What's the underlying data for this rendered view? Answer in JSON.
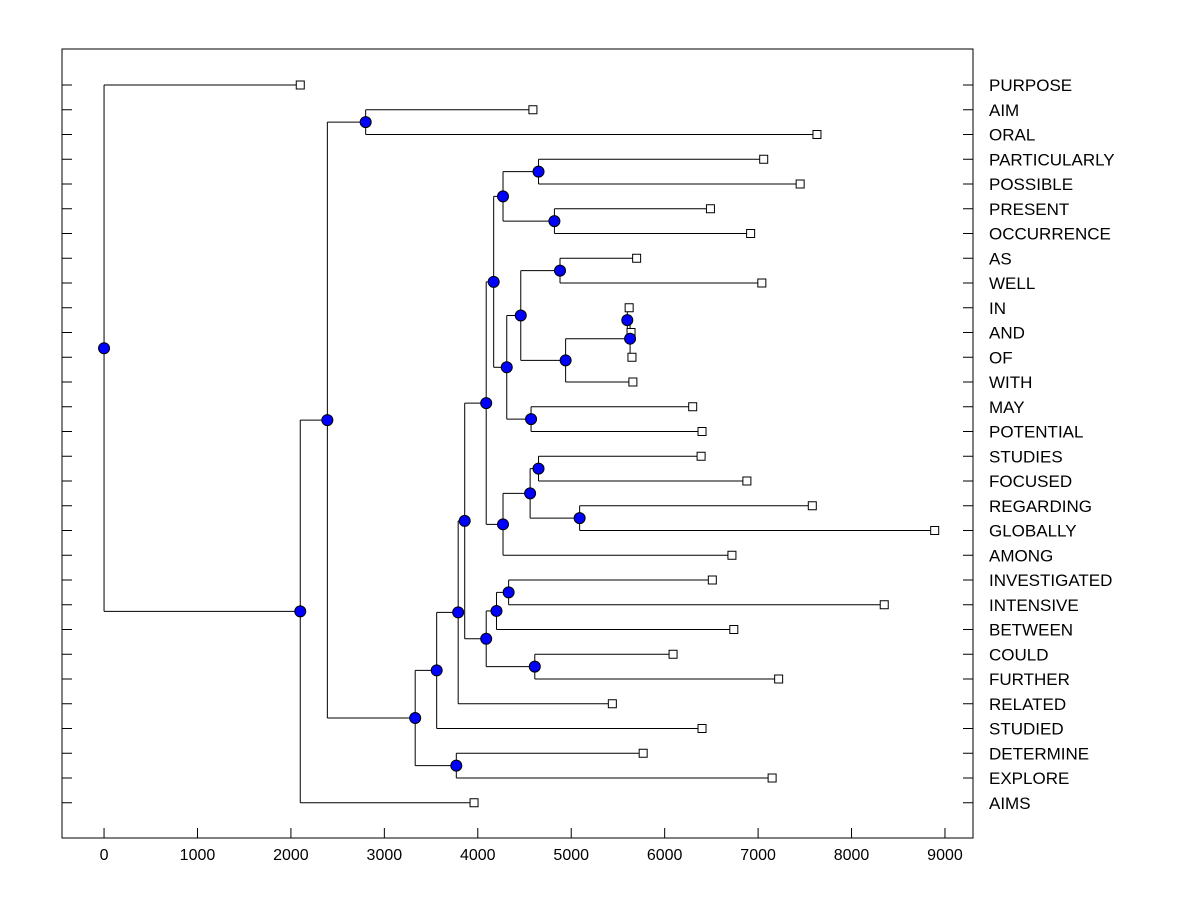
{
  "chart_data": {
    "type": "dendrogram",
    "title": "",
    "xlabel": "",
    "ylabel": "",
    "orientation": "horizontal",
    "xlim": [
      -450,
      9300
    ],
    "xticks": [
      0,
      1000,
      2000,
      3000,
      4000,
      5000,
      6000,
      7000,
      8000,
      9000
    ],
    "grid": false,
    "colors": {
      "node": "#0000ff",
      "line": "#000000",
      "leaf_fill": "#ffffff"
    },
    "leaves": [
      {
        "label": "PURPOSE",
        "x": 2100
      },
      {
        "label": "AIM",
        "x": 4590
      },
      {
        "label": "ORAL",
        "x": 7630
      },
      {
        "label": "PARTICULARLY",
        "x": 7060
      },
      {
        "label": "POSSIBLE",
        "x": 7450
      },
      {
        "label": "PRESENT",
        "x": 6490
      },
      {
        "label": "OCCURRENCE",
        "x": 6920
      },
      {
        "label": "AS",
        "x": 5700
      },
      {
        "label": "WELL",
        "x": 7040
      },
      {
        "label": "IN",
        "x": 5620
      },
      {
        "label": "AND",
        "x": 5640
      },
      {
        "label": "OF",
        "x": 5650
      },
      {
        "label": "WITH",
        "x": 5660
      },
      {
        "label": "MAY",
        "x": 6300
      },
      {
        "label": "POTENTIAL",
        "x": 6400
      },
      {
        "label": "STUDIES",
        "x": 6390
      },
      {
        "label": "FOCUSED",
        "x": 6880
      },
      {
        "label": "REGARDING",
        "x": 7580
      },
      {
        "label": "GLOBALLY",
        "x": 8890
      },
      {
        "label": "AMONG",
        "x": 6720
      },
      {
        "label": "INVESTIGATED",
        "x": 6510
      },
      {
        "label": "INTENSIVE",
        "x": 8350
      },
      {
        "label": "BETWEEN",
        "x": 6740
      },
      {
        "label": "COULD",
        "x": 6090
      },
      {
        "label": "FURTHER",
        "x": 7220
      },
      {
        "label": "RELATED",
        "x": 5440
      },
      {
        "label": "STUDIED",
        "x": 6400
      },
      {
        "label": "DETERMINE",
        "x": 5770
      },
      {
        "label": "EXPLORE",
        "x": 7150
      },
      {
        "label": "AIMS",
        "x": 3960
      }
    ],
    "merges": [
      {
        "id": "n1",
        "x": 5600,
        "children": [
          "L9",
          "L10"
        ]
      },
      {
        "id": "n2",
        "x": 5630,
        "children": [
          "n1",
          "L11"
        ]
      },
      {
        "id": "n3",
        "x": 4940,
        "children": [
          "n2",
          "L12"
        ]
      },
      {
        "id": "n4",
        "x": 4880,
        "children": [
          "L7",
          "L8"
        ]
      },
      {
        "id": "n5",
        "x": 4460,
        "children": [
          "n4",
          "n3"
        ]
      },
      {
        "id": "n6",
        "x": 4570,
        "children": [
          "L13",
          "L14"
        ]
      },
      {
        "id": "n7",
        "x": 4310,
        "children": [
          "n5",
          "n6"
        ]
      },
      {
        "id": "n8",
        "x": 4650,
        "children": [
          "L3",
          "L4"
        ]
      },
      {
        "id": "n9",
        "x": 4820,
        "children": [
          "L5",
          "L6"
        ]
      },
      {
        "id": "n10",
        "x": 4270,
        "children": [
          "n8",
          "n9"
        ]
      },
      {
        "id": "n11",
        "x": 4170,
        "children": [
          "n10",
          "n7"
        ]
      },
      {
        "id": "n12",
        "x": 4650,
        "children": [
          "L15",
          "L16"
        ]
      },
      {
        "id": "n13",
        "x": 5090,
        "children": [
          "L17",
          "L18"
        ]
      },
      {
        "id": "n14",
        "x": 4560,
        "children": [
          "n12",
          "n13"
        ]
      },
      {
        "id": "n15",
        "x": 4270,
        "children": [
          "n14",
          "L19"
        ]
      },
      {
        "id": "n16",
        "x": 4090,
        "children": [
          "n11",
          "n15"
        ]
      },
      {
        "id": "n17",
        "x": 4330,
        "children": [
          "L20",
          "L21"
        ]
      },
      {
        "id": "n18",
        "x": 4200,
        "children": [
          "n17",
          "L22"
        ]
      },
      {
        "id": "n19",
        "x": 4610,
        "children": [
          "L23",
          "L24"
        ]
      },
      {
        "id": "n20",
        "x": 4090,
        "children": [
          "n18",
          "n19"
        ]
      },
      {
        "id": "n21",
        "x": 3860,
        "children": [
          "n16",
          "n20"
        ]
      },
      {
        "id": "n22",
        "x": 3790,
        "children": [
          "n21",
          "L25"
        ]
      },
      {
        "id": "n23",
        "x": 3560,
        "children": [
          "n22",
          "L26"
        ]
      },
      {
        "id": "n24",
        "x": 3770,
        "children": [
          "L27",
          "L28"
        ]
      },
      {
        "id": "n25",
        "x": 3330,
        "children": [
          "n23",
          "n24"
        ]
      },
      {
        "id": "n26",
        "x": 2800,
        "children": [
          "L1",
          "L2"
        ]
      },
      {
        "id": "n27",
        "x": 2390,
        "children": [
          "n26",
          "n25"
        ]
      },
      {
        "id": "n28",
        "x": 2100,
        "children": [
          "n27",
          "L29"
        ]
      },
      {
        "id": "n29",
        "x": 0,
        "children": [
          "L0",
          "n28"
        ]
      }
    ]
  }
}
